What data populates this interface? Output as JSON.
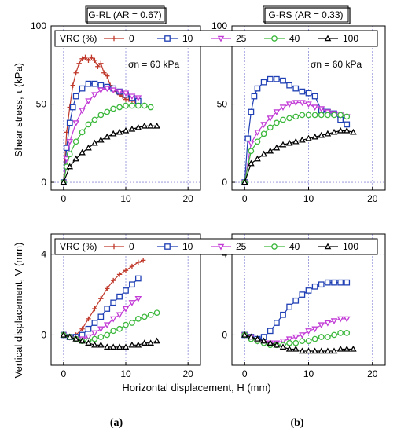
{
  "figure": {
    "ylabel_shear": "Shear stress, τ (kPa)",
    "ylabel_vert": "Vertical displacement, V (mm)",
    "xlabel": "Horizontal displacement, H (mm)",
    "panel_a": "(a)",
    "panel_b": "(b)",
    "title_a": "G-RL (AR = 0.67)",
    "title_b": "G-RS (AR = 0.33)",
    "sigma_label": "σn = 60 kPa",
    "legend_title": "VRC (%)"
  },
  "colors": {
    "vrc0": "#c0392b",
    "vrc10": "#1f3fb4",
    "vrc25": "#c23bd6",
    "vrc40": "#3cb83c",
    "vrc100": "#000000",
    "grid": "#8c8cd8"
  },
  "chart_data": [
    {
      "id": "shear_a",
      "type": "line",
      "title": "G-RL (AR = 0.67)",
      "xlabel": "",
      "ylabel": "Shear stress, τ (kPa)",
      "xlim": [
        -2,
        22
      ],
      "ylim": [
        -5,
        100
      ],
      "xticks": [
        0,
        10,
        20
      ],
      "yticks": [
        0,
        50,
        100
      ],
      "annotation": "σn = 60 kPa",
      "series": [
        {
          "name": "0",
          "marker": "plus",
          "x": [
            0,
            0.5,
            1,
            1.5,
            2,
            2.5,
            3,
            3.5,
            4,
            4.5,
            5,
            5.5,
            6,
            6.5,
            7,
            7.5,
            8,
            8.5,
            9,
            9.5,
            10,
            10.5,
            11,
            11.5,
            12
          ],
          "y": [
            0,
            32,
            48,
            62,
            70,
            76,
            79,
            80,
            78,
            80,
            78,
            74,
            76,
            70,
            68,
            62,
            60,
            58,
            56,
            55,
            53,
            53,
            52,
            52,
            52
          ]
        },
        {
          "name": "10",
          "marker": "square",
          "x": [
            0,
            0.5,
            1,
            1.5,
            2,
            3,
            4,
            5,
            6,
            7,
            8,
            9,
            10,
            11,
            12
          ],
          "y": [
            0,
            22,
            38,
            48,
            55,
            60,
            63,
            63,
            62,
            61,
            60,
            58,
            56,
            54,
            52
          ]
        },
        {
          "name": "25",
          "marker": "triangle-down",
          "x": [
            0,
            0.5,
            1,
            2,
            3,
            4,
            5,
            6,
            7,
            8,
            9,
            10,
            11,
            12
          ],
          "y": [
            0,
            15,
            26,
            38,
            46,
            52,
            56,
            59,
            60,
            59,
            58,
            57,
            55,
            54
          ]
        },
        {
          "name": "40",
          "marker": "circle",
          "x": [
            0,
            0.5,
            1,
            2,
            3,
            4,
            5,
            6,
            7,
            8,
            9,
            10,
            11,
            12,
            13,
            14
          ],
          "y": [
            0,
            10,
            18,
            26,
            32,
            37,
            40,
            43,
            45,
            47,
            48,
            49,
            49,
            49,
            49,
            48
          ]
        },
        {
          "name": "100",
          "marker": "triangle-up",
          "x": [
            0,
            1,
            2,
            3,
            4,
            5,
            6,
            7,
            8,
            9,
            10,
            11,
            12,
            13,
            14,
            15
          ],
          "y": [
            0,
            10,
            15,
            19,
            22,
            25,
            27,
            29,
            31,
            32,
            33,
            34,
            35,
            36,
            36,
            36
          ]
        }
      ]
    },
    {
      "id": "shear_b",
      "type": "line",
      "title": "G-RS (AR = 0.33)",
      "xlabel": "",
      "ylabel": "",
      "xlim": [
        -2,
        22
      ],
      "ylim": [
        -5,
        100
      ],
      "xticks": [
        0,
        10,
        20
      ],
      "yticks": [
        0,
        50,
        100
      ],
      "annotation": "σn = 60 kPa",
      "series": [
        {
          "name": "0",
          "marker": "plus",
          "x": [],
          "y": []
        },
        {
          "name": "10",
          "marker": "square",
          "x": [
            0,
            0.5,
            1,
            1.5,
            2,
            3,
            4,
            5,
            6,
            7,
            8,
            9,
            10,
            11,
            12,
            13,
            14,
            15,
            16
          ],
          "y": [
            0,
            28,
            45,
            55,
            60,
            64,
            66,
            66,
            65,
            62,
            60,
            58,
            57,
            55,
            46,
            45,
            44,
            40,
            37
          ]
        },
        {
          "name": "25",
          "marker": "triangle-down",
          "x": [
            0,
            1,
            2,
            3,
            4,
            5,
            6,
            7,
            8,
            9,
            10,
            11,
            12,
            13,
            14,
            15,
            16
          ],
          "y": [
            0,
            25,
            32,
            37,
            41,
            45,
            48,
            50,
            51,
            51,
            50,
            48,
            47,
            45,
            44,
            43,
            42
          ]
        },
        {
          "name": "40",
          "marker": "circle",
          "x": [
            0,
            1,
            2,
            3,
            4,
            5,
            6,
            7,
            8,
            9,
            10,
            11,
            12,
            13,
            14,
            15,
            16
          ],
          "y": [
            0,
            20,
            26,
            31,
            35,
            38,
            40,
            41,
            42,
            43,
            43,
            43,
            43,
            43,
            43,
            43,
            42
          ]
        },
        {
          "name": "100",
          "marker": "triangle-up",
          "x": [
            0,
            1,
            2,
            3,
            4,
            5,
            6,
            7,
            8,
            9,
            10,
            11,
            12,
            13,
            14,
            15,
            16,
            17
          ],
          "y": [
            0,
            12,
            15,
            18,
            20,
            22,
            24,
            25,
            26,
            27,
            28,
            29,
            30,
            31,
            32,
            33,
            33,
            32
          ]
        }
      ]
    },
    {
      "id": "vert_a",
      "type": "line",
      "xlabel": "Horizontal displacement, H (mm)",
      "ylabel": "Vertical displacement, V (mm)",
      "xlim": [
        -2,
        22
      ],
      "ylim": [
        -1.5,
        5
      ],
      "xticks": [
        0,
        10,
        20
      ],
      "yticks": [
        0,
        4
      ],
      "series": [
        {
          "name": "0",
          "marker": "plus",
          "x": [
            0,
            1,
            2,
            3,
            4,
            5,
            6,
            7,
            8,
            9,
            10,
            11,
            12,
            12.8
          ],
          "y": [
            0,
            -0.1,
            0,
            0.3,
            0.8,
            1.3,
            1.8,
            2.3,
            2.7,
            3.0,
            3.2,
            3.4,
            3.6,
            3.7
          ]
        },
        {
          "name": "10",
          "marker": "square",
          "x": [
            0,
            1,
            2,
            3,
            4,
            5,
            6,
            7,
            8,
            9,
            10,
            11,
            12
          ],
          "y": [
            0,
            -0.1,
            -0.1,
            0,
            0.3,
            0.6,
            0.9,
            1.3,
            1.6,
            1.9,
            2.2,
            2.5,
            2.8
          ]
        },
        {
          "name": "25",
          "marker": "triangle-down",
          "x": [
            0,
            1,
            2,
            3,
            4,
            5,
            6,
            7,
            8,
            9,
            10,
            11,
            12
          ],
          "y": [
            0,
            -0.1,
            -0.2,
            -0.2,
            -0.1,
            0.1,
            0.3,
            0.5,
            0.8,
            1.0,
            1.3,
            1.6,
            1.8
          ]
        },
        {
          "name": "40",
          "marker": "circle",
          "x": [
            0,
            1,
            2,
            3,
            4,
            5,
            6,
            7,
            8,
            9,
            10,
            11,
            12,
            13,
            14,
            15
          ],
          "y": [
            0,
            -0.1,
            -0.2,
            -0.3,
            -0.3,
            -0.2,
            -0.1,
            0,
            0.2,
            0.3,
            0.5,
            0.6,
            0.8,
            0.9,
            1.0,
            1.1
          ]
        },
        {
          "name": "100",
          "marker": "triangle-up",
          "x": [
            0,
            1,
            2,
            3,
            4,
            5,
            6,
            7,
            8,
            9,
            10,
            11,
            12,
            13,
            14,
            15
          ],
          "y": [
            0,
            -0.1,
            -0.2,
            -0.3,
            -0.4,
            -0.5,
            -0.5,
            -0.6,
            -0.6,
            -0.6,
            -0.6,
            -0.5,
            -0.5,
            -0.4,
            -0.4,
            -0.3
          ]
        }
      ]
    },
    {
      "id": "vert_b",
      "type": "line",
      "xlabel": "",
      "ylabel": "",
      "xlim": [
        -2,
        22
      ],
      "ylim": [
        -1.5,
        5
      ],
      "xticks": [
        0,
        10,
        20
      ],
      "yticks": [
        0,
        4
      ],
      "series": [
        {
          "name": "0",
          "marker": "plus",
          "x": [],
          "y": []
        },
        {
          "name": "10",
          "marker": "square",
          "x": [
            0,
            1,
            2,
            3,
            4,
            5,
            6,
            7,
            8,
            9,
            10,
            11,
            12,
            13,
            14,
            15,
            16
          ],
          "y": [
            0,
            -0.1,
            -0.2,
            -0.1,
            0.2,
            0.6,
            1.0,
            1.4,
            1.7,
            2.0,
            2.2,
            2.4,
            2.5,
            2.6,
            2.6,
            2.6,
            2.6
          ]
        },
        {
          "name": "25",
          "marker": "triangle-down",
          "x": [
            0,
            1,
            2,
            3,
            4,
            5,
            6,
            7,
            8,
            9,
            10,
            11,
            12,
            13,
            14,
            15,
            16
          ],
          "y": [
            0,
            -0.1,
            -0.3,
            -0.4,
            -0.4,
            -0.4,
            -0.3,
            -0.2,
            -0.1,
            0,
            0.2,
            0.3,
            0.5,
            0.6,
            0.7,
            0.8,
            0.8
          ]
        },
        {
          "name": "40",
          "marker": "circle",
          "x": [
            0,
            1,
            2,
            3,
            4,
            5,
            6,
            7,
            8,
            9,
            10,
            11,
            12,
            13,
            14,
            15,
            16
          ],
          "y": [
            0,
            -0.2,
            -0.3,
            -0.4,
            -0.5,
            -0.5,
            -0.5,
            -0.4,
            -0.4,
            -0.3,
            -0.3,
            -0.2,
            -0.1,
            -0.1,
            0,
            0.1,
            0.1
          ]
        },
        {
          "name": "100",
          "marker": "triangle-up",
          "x": [
            0,
            1,
            2,
            3,
            4,
            5,
            6,
            7,
            8,
            9,
            10,
            11,
            12,
            13,
            14,
            15,
            16,
            17
          ],
          "y": [
            0,
            -0.1,
            -0.2,
            -0.3,
            -0.4,
            -0.5,
            -0.6,
            -0.7,
            -0.7,
            -0.8,
            -0.8,
            -0.8,
            -0.8,
            -0.8,
            -0.8,
            -0.7,
            -0.7,
            -0.7
          ]
        }
      ]
    }
  ],
  "legend": {
    "title": "VRC (%)",
    "entries": [
      {
        "label": "0",
        "marker": "plus",
        "color": "#c0392b"
      },
      {
        "label": "10",
        "marker": "square",
        "color": "#1f3fb4"
      },
      {
        "label": "25",
        "marker": "triangle-down",
        "color": "#c23bd6"
      },
      {
        "label": "40",
        "marker": "circle",
        "color": "#3cb83c"
      },
      {
        "label": "100",
        "marker": "triangle-up",
        "color": "#000000"
      }
    ]
  }
}
